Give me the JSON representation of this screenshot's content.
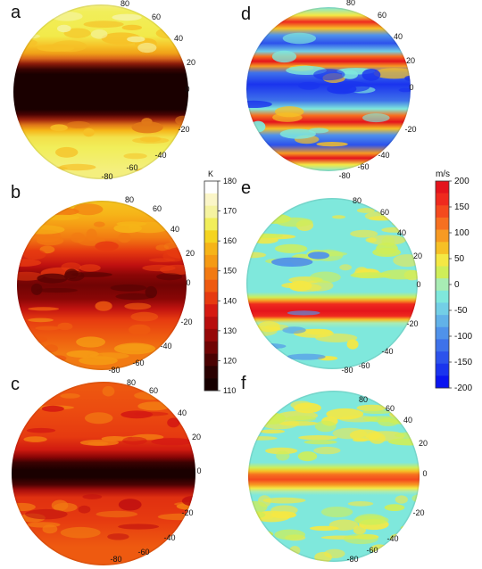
{
  "panels": [
    {
      "id": "a",
      "label": "a",
      "latitudes": [
        "80",
        "60",
        "40",
        "20",
        "0",
        "-20",
        "-40",
        "-60",
        "-80"
      ]
    },
    {
      "id": "b",
      "label": "b",
      "latitudes": [
        "80",
        "60",
        "40",
        "20",
        "0",
        "-20",
        "-40",
        "-60",
        "-80"
      ]
    },
    {
      "id": "c",
      "label": "c",
      "latitudes": [
        "80",
        "60",
        "40",
        "20",
        "0",
        "-20",
        "-40",
        "-60",
        "-80"
      ]
    },
    {
      "id": "d",
      "label": "d",
      "latitudes": [
        "80",
        "60",
        "40",
        "20",
        "0",
        "-20",
        "-40",
        "-60",
        "-80"
      ]
    },
    {
      "id": "e",
      "label": "e",
      "latitudes": [
        "80",
        "60",
        "40",
        "20",
        "0",
        "-20",
        "-40",
        "-60",
        "-80"
      ]
    },
    {
      "id": "f",
      "label": "f",
      "latitudes": [
        "80",
        "60",
        "40",
        "20",
        "0",
        "-20",
        "-40",
        "-60",
        "-80"
      ]
    }
  ],
  "colorbar_temperature": {
    "unit": "K",
    "ticks": [
      "180",
      "170",
      "160",
      "150",
      "140",
      "130",
      "120",
      "110"
    ],
    "colors": [
      "#ffffff",
      "#fbf6c8",
      "#f5f3a0",
      "#f1ee5a",
      "#f5d420",
      "#f6b418",
      "#f59a14",
      "#f27a12",
      "#ee5a10",
      "#e63a10",
      "#d51a12",
      "#b80e0e",
      "#960808",
      "#700404",
      "#4a0202",
      "#2a0101",
      "#160000"
    ]
  },
  "colorbar_wind": {
    "unit": "m/s",
    "ticks": [
      "200",
      "150",
      "100",
      "50",
      "0",
      "-50",
      "-100",
      "-150",
      "-200"
    ],
    "colors": [
      "#e4141c",
      "#ef2a1e",
      "#f44a1e",
      "#f67020",
      "#f79a22",
      "#f6c026",
      "#f4e844",
      "#cfee58",
      "#a8ecb4",
      "#7fe8dc",
      "#73cfe6",
      "#62b2e8",
      "#5092ea",
      "#3e72ea",
      "#2c52ec",
      "#1a34ee",
      "#0a14f0"
    ]
  }
}
